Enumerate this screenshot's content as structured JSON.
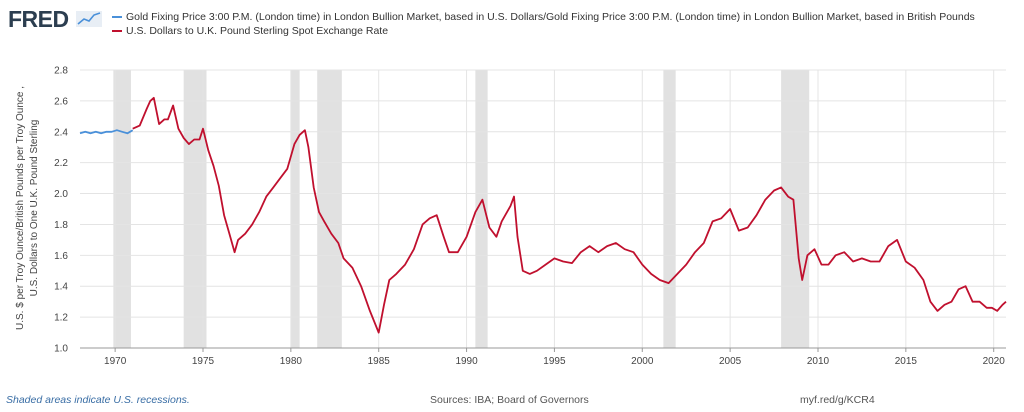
{
  "logo": {
    "text": "FRED",
    "icon": "fred-sparkline-icon"
  },
  "legend": [
    {
      "label": "Gold Fixing Price 3:00 P.M. (London time) in London Bullion Market, based in U.S. Dollars/Gold Fixing Price 3:00 P.M. (London time) in London Bullion Market, based in British Pounds",
      "color": "#4a90d9"
    },
    {
      "label": "U.S. Dollars to U.K. Pound Sterling Spot Exchange Rate",
      "color": "#c0102e"
    }
  ],
  "footer": {
    "recession_note": "Shaded areas indicate U.S. recessions.",
    "sources": "Sources: IBA; Board of Governors",
    "url": "myf.red/g/KCR4"
  },
  "chart_data": {
    "type": "line",
    "ylabel_line1": "U.S. $ per Troy Ounce/British Pounds per Troy Ounce ,",
    "ylabel_line2": "U.S. Dollars to One U.K. Pound Sterling",
    "xlim": [
      1968.0,
      2020.7
    ],
    "ylim": [
      1.0,
      2.8
    ],
    "yticks": [
      "1.0",
      "1.2",
      "1.4",
      "1.6",
      "1.8",
      "2.0",
      "2.2",
      "2.4",
      "2.6",
      "2.8"
    ],
    "xticks": [
      "1970",
      "1975",
      "1980",
      "1985",
      "1990",
      "1995",
      "2000",
      "2005",
      "2010",
      "2015",
      "2020"
    ],
    "grid": true,
    "recessions": [
      [
        1969.9,
        1970.9
      ],
      [
        1973.9,
        1975.2
      ],
      [
        1980.0,
        1980.5
      ],
      [
        1981.5,
        1982.9
      ],
      [
        1990.5,
        1991.2
      ],
      [
        2001.2,
        2001.9
      ],
      [
        2007.9,
        2009.5
      ]
    ],
    "series": [
      {
        "color": "#4a90d9",
        "x": [
          1968.0,
          1968.3,
          1968.6,
          1968.9,
          1969.2,
          1969.5,
          1969.8,
          1970.1,
          1970.4,
          1970.7,
          1971.0
        ],
        "y": [
          2.39,
          2.4,
          2.39,
          2.4,
          2.39,
          2.4,
          2.4,
          2.41,
          2.4,
          2.39,
          2.41
        ]
      },
      {
        "color": "#c0102e",
        "x": [
          1971.0,
          1971.4,
          1971.8,
          1972.0,
          1972.2,
          1972.5,
          1972.8,
          1973.0,
          1973.3,
          1973.6,
          1973.9,
          1974.2,
          1974.5,
          1974.8,
          1975.0,
          1975.3,
          1975.6,
          1975.9,
          1976.2,
          1976.5,
          1976.8,
          1977.0,
          1977.4,
          1977.8,
          1978.2,
          1978.6,
          1979.0,
          1979.4,
          1979.8,
          1980.2,
          1980.5,
          1980.8,
          1981.0,
          1981.3,
          1981.6,
          1981.9,
          1982.3,
          1982.7,
          1983.0,
          1983.5,
          1984.0,
          1984.5,
          1985.0,
          1985.3,
          1985.6,
          1986.0,
          1986.5,
          1987.0,
          1987.5,
          1987.9,
          1988.3,
          1988.7,
          1989.0,
          1989.5,
          1990.0,
          1990.5,
          1990.9,
          1991.3,
          1991.7,
          1992.0,
          1992.5,
          1992.7,
          1992.9,
          1993.2,
          1993.6,
          1994.0,
          1994.5,
          1995.0,
          1995.5,
          1996.0,
          1996.5,
          1997.0,
          1997.5,
          1998.0,
          1998.5,
          1999.0,
          1999.5,
          2000.0,
          2000.5,
          2001.0,
          2001.5,
          2002.0,
          2002.5,
          2003.0,
          2003.5,
          2004.0,
          2004.5,
          2005.0,
          2005.5,
          2006.0,
          2006.5,
          2007.0,
          2007.5,
          2007.9,
          2008.3,
          2008.6,
          2008.9,
          2009.1,
          2009.4,
          2009.8,
          2010.2,
          2010.6,
          2011.0,
          2011.5,
          2012.0,
          2012.5,
          2013.0,
          2013.5,
          2014.0,
          2014.5,
          2015.0,
          2015.5,
          2016.0,
          2016.4,
          2016.8,
          2017.2,
          2017.6,
          2018.0,
          2018.4,
          2018.8,
          2019.2,
          2019.6,
          2019.9,
          2020.2,
          2020.5,
          2020.7
        ],
        "y": [
          2.42,
          2.44,
          2.55,
          2.6,
          2.62,
          2.45,
          2.48,
          2.48,
          2.57,
          2.42,
          2.36,
          2.32,
          2.35,
          2.35,
          2.42,
          2.28,
          2.18,
          2.05,
          1.86,
          1.74,
          1.62,
          1.7,
          1.74,
          1.8,
          1.88,
          1.98,
          2.04,
          2.1,
          2.16,
          2.32,
          2.38,
          2.41,
          2.3,
          2.04,
          1.88,
          1.82,
          1.74,
          1.68,
          1.58,
          1.52,
          1.4,
          1.24,
          1.1,
          1.28,
          1.44,
          1.48,
          1.54,
          1.64,
          1.8,
          1.84,
          1.86,
          1.72,
          1.62,
          1.62,
          1.72,
          1.88,
          1.96,
          1.78,
          1.72,
          1.82,
          1.92,
          1.98,
          1.72,
          1.5,
          1.48,
          1.5,
          1.54,
          1.58,
          1.56,
          1.55,
          1.62,
          1.66,
          1.62,
          1.66,
          1.68,
          1.64,
          1.62,
          1.54,
          1.48,
          1.44,
          1.42,
          1.48,
          1.54,
          1.62,
          1.68,
          1.82,
          1.84,
          1.9,
          1.76,
          1.78,
          1.86,
          1.96,
          2.02,
          2.04,
          1.98,
          1.96,
          1.58,
          1.44,
          1.6,
          1.64,
          1.54,
          1.54,
          1.6,
          1.62,
          1.56,
          1.58,
          1.56,
          1.56,
          1.66,
          1.7,
          1.56,
          1.52,
          1.44,
          1.3,
          1.24,
          1.28,
          1.3,
          1.38,
          1.4,
          1.3,
          1.3,
          1.26,
          1.26,
          1.24,
          1.28,
          1.3
        ]
      }
    ]
  }
}
